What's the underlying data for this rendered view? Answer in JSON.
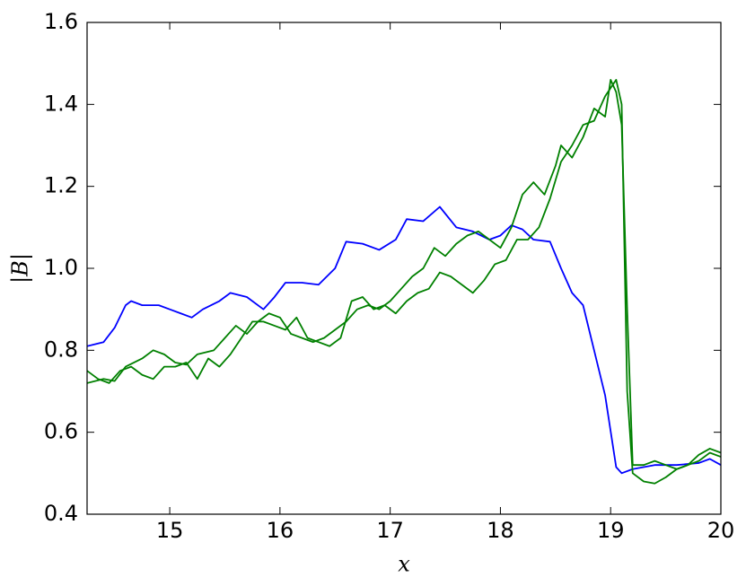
{
  "chart_data": {
    "type": "line",
    "xlabel": "x",
    "ylabel": "|B|",
    "xlim": [
      14.25,
      20
    ],
    "ylim": [
      0.4,
      1.6
    ],
    "xticks": [
      15,
      16,
      17,
      18,
      19,
      20
    ],
    "yticks": [
      0.4,
      0.6,
      0.8,
      {
        "value": 1,
        "label": "1.0"
      },
      1.2,
      1.4,
      1.6
    ],
    "series": [
      {
        "color": "#0000ff",
        "x": [
          14.25,
          14.4,
          14.5,
          14.6,
          14.65,
          14.75,
          14.9,
          15.0,
          15.1,
          15.2,
          15.3,
          15.45,
          15.55,
          15.7,
          15.85,
          15.95,
          16.05,
          16.2,
          16.35,
          16.5,
          16.6,
          16.75,
          16.9,
          17.05,
          17.15,
          17.3,
          17.45,
          17.6,
          17.75,
          17.9,
          18.0,
          18.1,
          18.2,
          18.3,
          18.45,
          18.55,
          18.65,
          18.75,
          18.85,
          18.95,
          19.05,
          19.1,
          19.2,
          19.4,
          19.6,
          19.8,
          19.9,
          20.0
        ],
        "values": [
          0.81,
          0.82,
          0.855,
          0.91,
          0.92,
          0.91,
          0.91,
          0.9,
          0.89,
          0.88,
          0.9,
          0.92,
          0.94,
          0.93,
          0.9,
          0.93,
          0.965,
          0.965,
          0.96,
          1.0,
          1.065,
          1.06,
          1.045,
          1.07,
          1.12,
          1.115,
          1.15,
          1.1,
          1.09,
          1.07,
          1.08,
          1.105,
          1.095,
          1.07,
          1.065,
          1.0,
          0.94,
          0.91,
          0.8,
          0.69,
          0.515,
          0.5,
          0.51,
          0.52,
          0.52,
          0.525,
          0.535,
          0.52
        ]
      },
      {
        "color": "#008000",
        "x": [
          14.25,
          14.4,
          14.5,
          14.6,
          14.75,
          14.85,
          14.95,
          15.05,
          15.15,
          15.25,
          15.4,
          15.5,
          15.6,
          15.7,
          15.8,
          15.9,
          16.0,
          16.1,
          16.2,
          16.3,
          16.4,
          16.5,
          16.6,
          16.7,
          16.8,
          16.9,
          17.0,
          17.1,
          17.2,
          17.3,
          17.4,
          17.5,
          17.6,
          17.7,
          17.8,
          17.9,
          18.0,
          18.1,
          18.2,
          18.3,
          18.4,
          18.5,
          18.55,
          18.65,
          18.75,
          18.85,
          18.95,
          19.0,
          19.05,
          19.1,
          19.15,
          19.2,
          19.3,
          19.4,
          19.5,
          19.6,
          19.7,
          19.8,
          19.9,
          20.0
        ],
        "values": [
          0.72,
          0.73,
          0.725,
          0.76,
          0.78,
          0.8,
          0.79,
          0.77,
          0.765,
          0.79,
          0.8,
          0.83,
          0.86,
          0.84,
          0.87,
          0.89,
          0.88,
          0.84,
          0.83,
          0.82,
          0.83,
          0.85,
          0.87,
          0.9,
          0.91,
          0.9,
          0.92,
          0.95,
          0.98,
          1.0,
          1.05,
          1.03,
          1.06,
          1.08,
          1.09,
          1.07,
          1.05,
          1.1,
          1.18,
          1.21,
          1.18,
          1.25,
          1.3,
          1.27,
          1.32,
          1.39,
          1.37,
          1.46,
          1.43,
          1.35,
          0.9,
          0.52,
          0.52,
          0.53,
          0.52,
          0.51,
          0.52,
          0.53,
          0.55,
          0.54
        ]
      },
      {
        "color": "#008000",
        "x": [
          14.25,
          14.35,
          14.45,
          14.55,
          14.65,
          14.75,
          14.85,
          14.95,
          15.05,
          15.15,
          15.25,
          15.35,
          15.45,
          15.55,
          15.65,
          15.75,
          15.85,
          15.95,
          16.05,
          16.15,
          16.25,
          16.35,
          16.45,
          16.55,
          16.65,
          16.75,
          16.85,
          16.95,
          17.05,
          17.15,
          17.25,
          17.35,
          17.45,
          17.55,
          17.65,
          17.75,
          17.85,
          17.95,
          18.05,
          18.15,
          18.25,
          18.35,
          18.45,
          18.55,
          18.65,
          18.75,
          18.85,
          18.95,
          19.05,
          19.1,
          19.15,
          19.2,
          19.3,
          19.4,
          19.5,
          19.6,
          19.7,
          19.8,
          19.9,
          20.0
        ],
        "values": [
          0.75,
          0.73,
          0.72,
          0.75,
          0.76,
          0.74,
          0.73,
          0.76,
          0.76,
          0.77,
          0.73,
          0.78,
          0.76,
          0.79,
          0.83,
          0.87,
          0.87,
          0.86,
          0.85,
          0.88,
          0.83,
          0.82,
          0.81,
          0.83,
          0.92,
          0.93,
          0.9,
          0.91,
          0.89,
          0.92,
          0.94,
          0.95,
          0.99,
          0.98,
          0.96,
          0.94,
          0.97,
          1.01,
          1.02,
          1.07,
          1.07,
          1.1,
          1.17,
          1.26,
          1.3,
          1.35,
          1.36,
          1.42,
          1.46,
          1.4,
          0.7,
          0.5,
          0.48,
          0.475,
          0.49,
          0.51,
          0.52,
          0.545,
          0.56,
          0.55
        ]
      }
    ]
  }
}
